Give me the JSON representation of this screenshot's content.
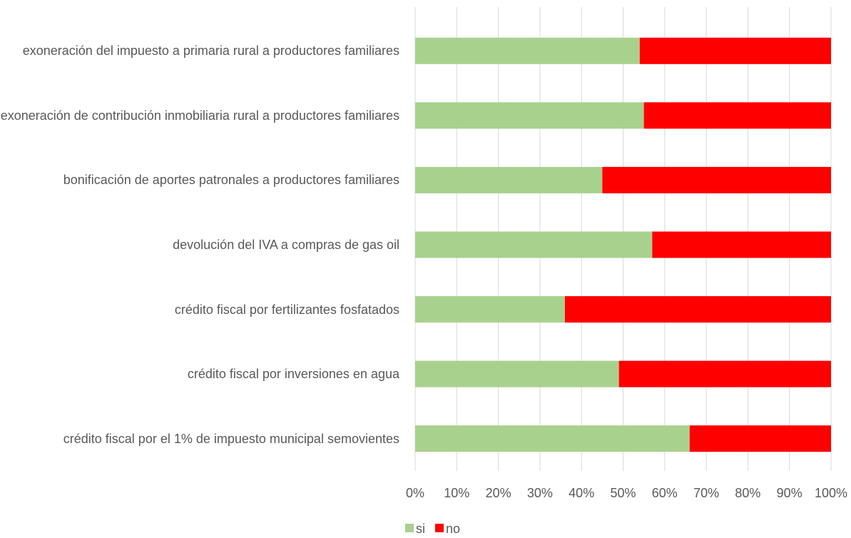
{
  "chart_data": {
    "type": "stacked_barh",
    "categories": [
      "exoneración del impuesto a primaria rural a productores familiares",
      "exoneración de contribución inmobiliaria rural a productores familiares",
      "bonificación de aportes patronales a productores familiares",
      "devolución del IVA a compras de gas oil",
      "crédito fiscal por fertilizantes fosfatados",
      "crédito fiscal por inversiones en agua",
      "crédito fiscal por el 1% de impuesto municipal semovientes"
    ],
    "series": [
      {
        "name": "si",
        "color": "#a9d18e",
        "values": [
          54,
          55,
          45,
          57,
          36,
          49,
          66
        ]
      },
      {
        "name": "no",
        "color": "#ff0000",
        "values": [
          46,
          45,
          55,
          43,
          64,
          51,
          34
        ]
      }
    ],
    "xlim": [
      0,
      100
    ],
    "xticks": [
      {
        "value": 0,
        "label": "0%"
      },
      {
        "value": 10,
        "label": "10%"
      },
      {
        "value": 20,
        "label": "20%"
      },
      {
        "value": 30,
        "label": "30%"
      },
      {
        "value": 40,
        "label": "40%"
      },
      {
        "value": 50,
        "label": "50%"
      },
      {
        "value": 60,
        "label": "60%"
      },
      {
        "value": 70,
        "label": "70%"
      },
      {
        "value": 80,
        "label": "80%"
      },
      {
        "value": 90,
        "label": "90%"
      },
      {
        "value": 100,
        "label": "100%"
      }
    ],
    "grid": true,
    "legend": "bottom"
  }
}
